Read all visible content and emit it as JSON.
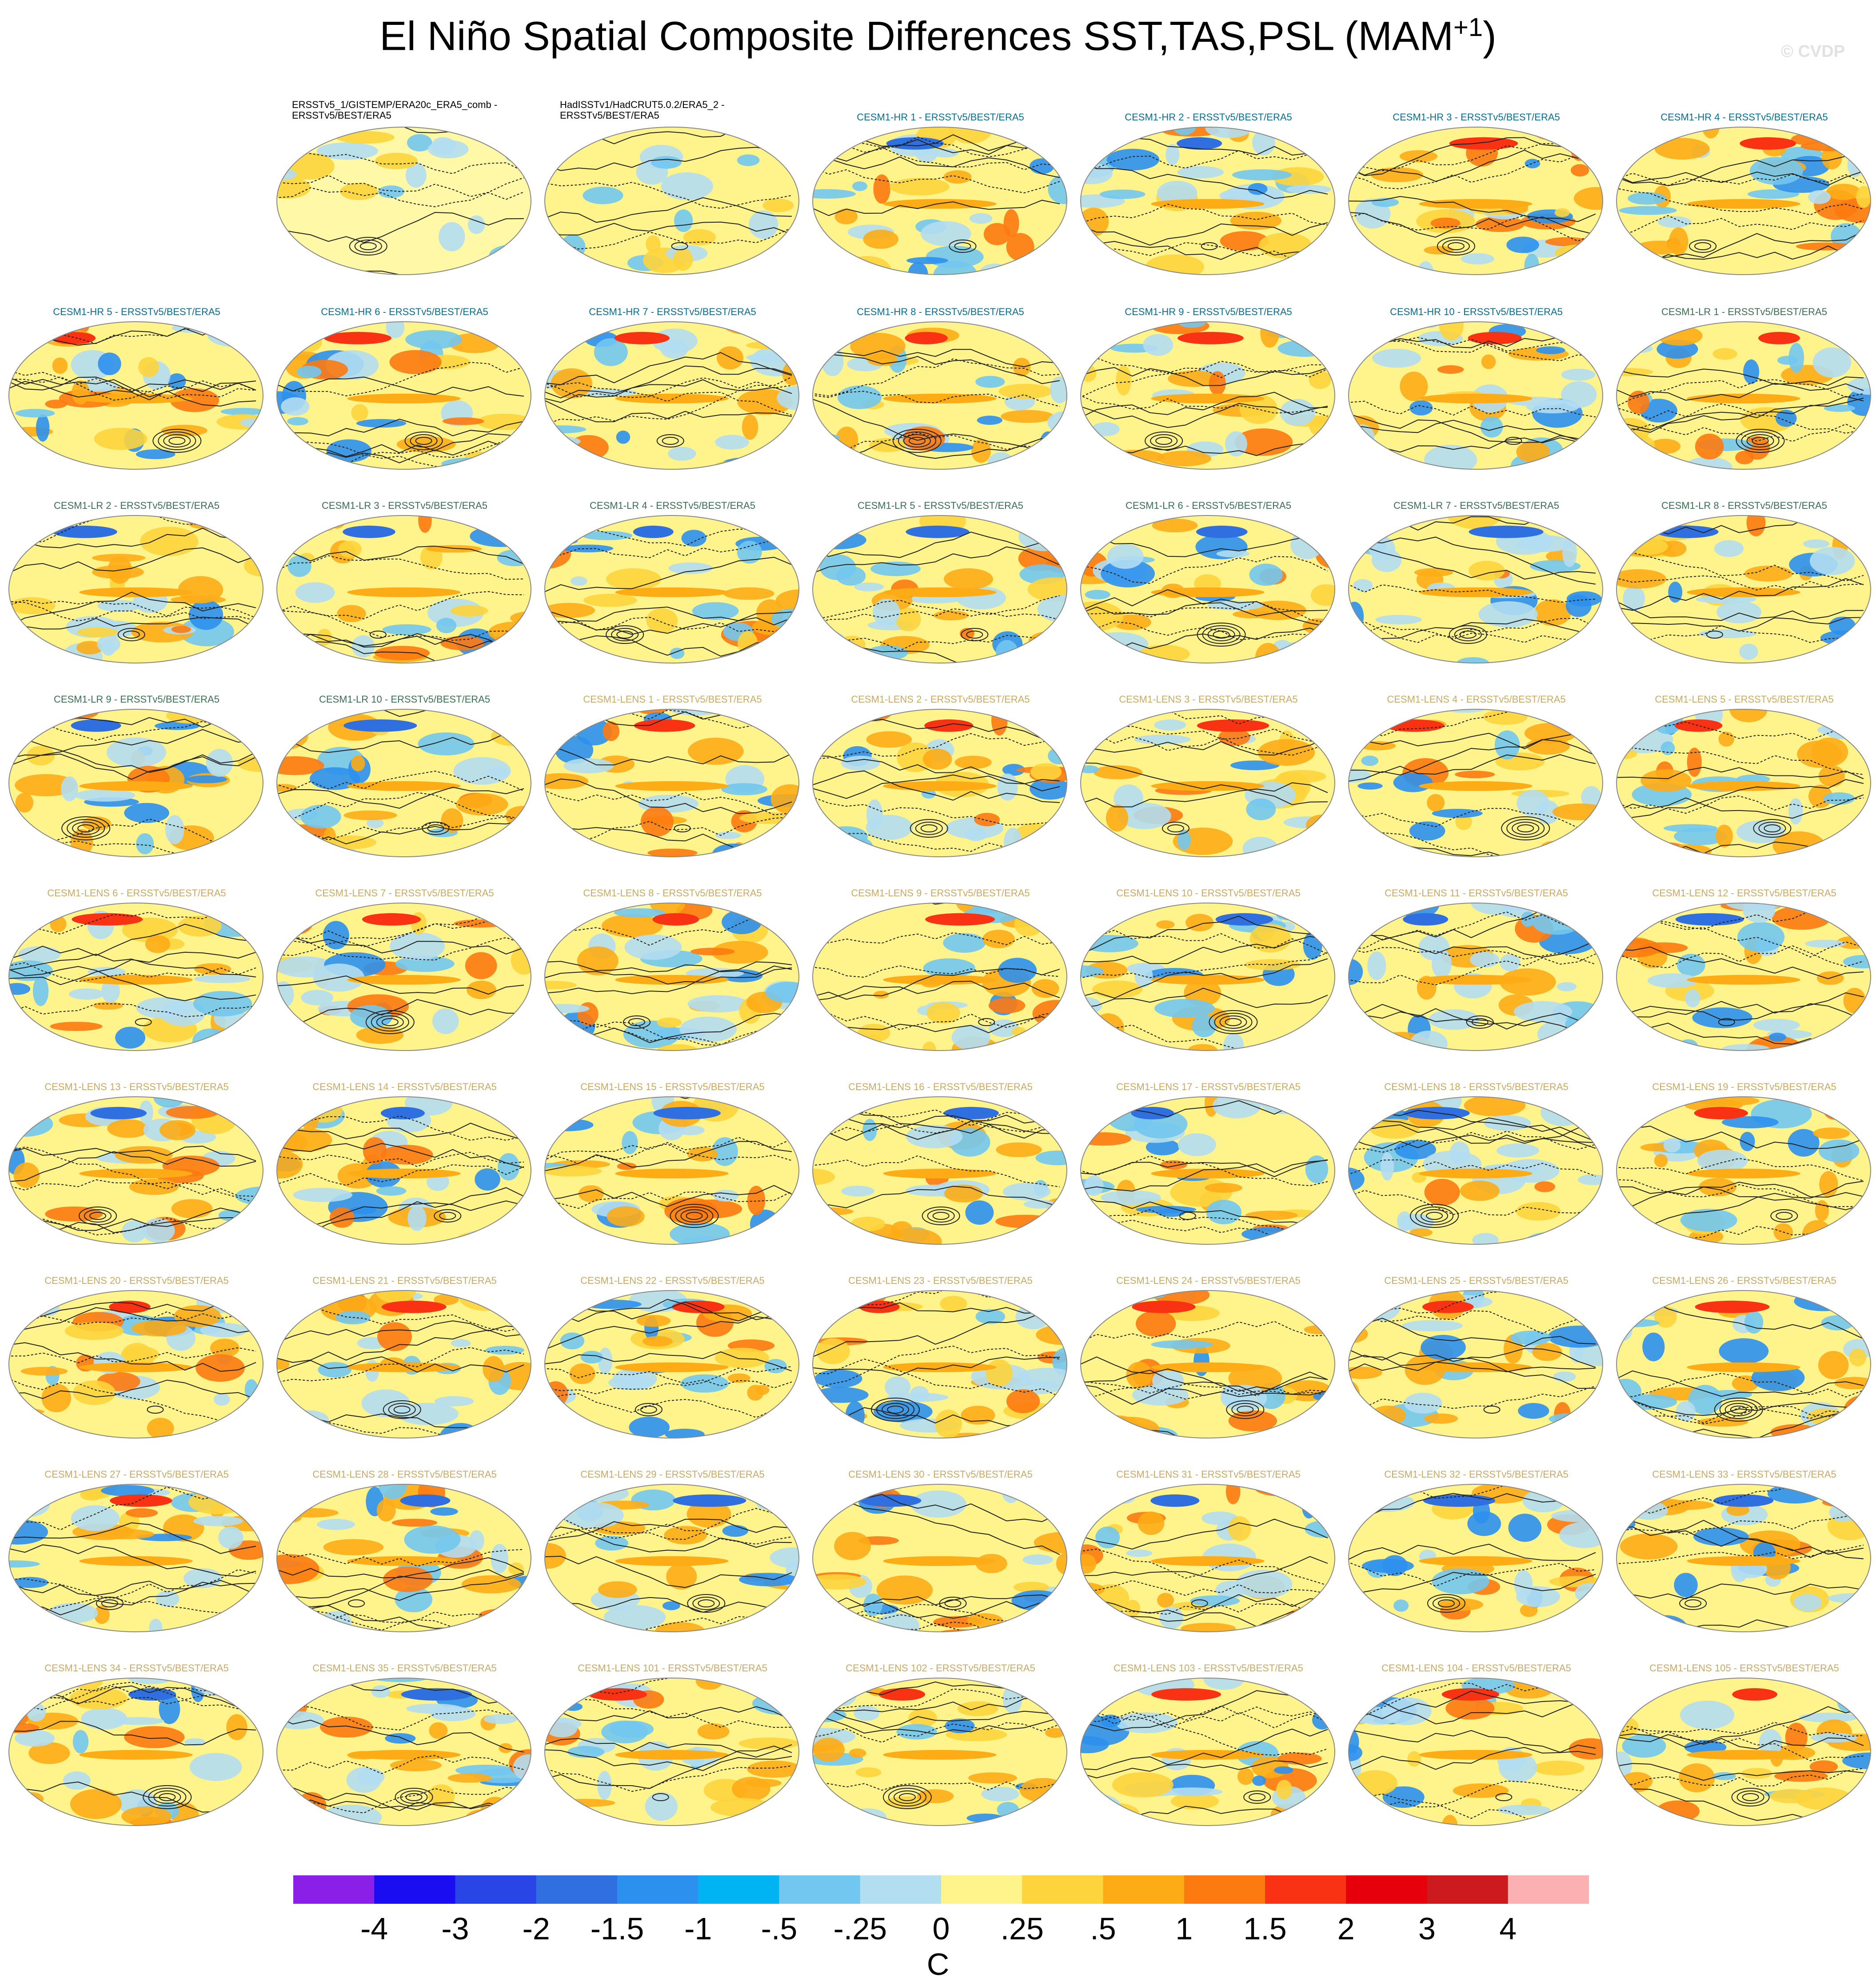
{
  "title": "El Niño Spatial Composite Differences SST,TAS,PSL (MAM",
  "title_sup": "+1",
  "title_close": ")",
  "copyright": "© CVDP",
  "colorbar": {
    "units": "C",
    "tick_labels": [
      "-4",
      "-3",
      "-2",
      "-1.5",
      "-1",
      "-.5",
      "-.25",
      "0",
      ".25",
      ".5",
      "1",
      "1.5",
      "2",
      "3",
      "4"
    ],
    "colors": [
      "#8a1fe8",
      "#1a0df2",
      "#2a45e6",
      "#2f6fe0",
      "#2c90ee",
      "#00b4f3",
      "#72c7f0",
      "#b3ddf1",
      "#fff38c",
      "#fdd43c",
      "#fdac16",
      "#fd7a10",
      "#f93214",
      "#e5000b",
      "#cc1a1f",
      "#fbb1b1"
    ]
  },
  "panels": [
    {
      "label": "ERSSTv5_1/GISTEMP/ERA20c_ERA5_comb - ERSSTv5/BEST/ERA5",
      "group": "obs"
    },
    {
      "label": "HadISSTv1/HadCRUT5.0.2/ERA5_2 - ERSSTv5/BEST/ERA5",
      "group": "obs"
    },
    {
      "label": "CESM1-HR 1 - ERSSTv5/BEST/ERA5",
      "group": "blue"
    },
    {
      "label": "CESM1-HR 2 - ERSSTv5/BEST/ERA5",
      "group": "blue"
    },
    {
      "label": "CESM1-HR 3 - ERSSTv5/BEST/ERA5",
      "group": "blue"
    },
    {
      "label": "CESM1-HR 4 - ERSSTv5/BEST/ERA5",
      "group": "blue"
    },
    {
      "label": "CESM1-HR 5 - ERSSTv5/BEST/ERA5",
      "group": "blue"
    },
    {
      "label": "CESM1-HR 6 - ERSSTv5/BEST/ERA5",
      "group": "blue"
    },
    {
      "label": "CESM1-HR 7 - ERSSTv5/BEST/ERA5",
      "group": "blue"
    },
    {
      "label": "CESM1-HR 8 - ERSSTv5/BEST/ERA5",
      "group": "blue"
    },
    {
      "label": "CESM1-HR 9 - ERSSTv5/BEST/ERA5",
      "group": "blue"
    },
    {
      "label": "CESM1-HR 10 - ERSSTv5/BEST/ERA5",
      "group": "blue"
    },
    {
      "label": "CESM1-LR 1 - ERSSTv5/BEST/ERA5",
      "group": "green"
    },
    {
      "label": "CESM1-LR 2 - ERSSTv5/BEST/ERA5",
      "group": "green"
    },
    {
      "label": "CESM1-LR 3 - ERSSTv5/BEST/ERA5",
      "group": "green"
    },
    {
      "label": "CESM1-LR 4 - ERSSTv5/BEST/ERA5",
      "group": "green"
    },
    {
      "label": "CESM1-LR 5 - ERSSTv5/BEST/ERA5",
      "group": "green"
    },
    {
      "label": "CESM1-LR 6 - ERSSTv5/BEST/ERA5",
      "group": "green"
    },
    {
      "label": "CESM1-LR 7 - ERSSTv5/BEST/ERA5",
      "group": "green"
    },
    {
      "label": "CESM1-LR 8 - ERSSTv5/BEST/ERA5",
      "group": "green"
    },
    {
      "label": "CESM1-LR 9 - ERSSTv5/BEST/ERA5",
      "group": "green"
    },
    {
      "label": "CESM1-LR 10 - ERSSTv5/BEST/ERA5",
      "group": "green"
    },
    {
      "label": "CESM1-LENS 1 - ERSSTv5/BEST/ERA5",
      "group": "tan"
    },
    {
      "label": "CESM1-LENS 2 - ERSSTv5/BEST/ERA5",
      "group": "tan"
    },
    {
      "label": "CESM1-LENS 3 - ERSSTv5/BEST/ERA5",
      "group": "tan"
    },
    {
      "label": "CESM1-LENS 4 - ERSSTv5/BEST/ERA5",
      "group": "tan"
    },
    {
      "label": "CESM1-LENS 5 - ERSSTv5/BEST/ERA5",
      "group": "tan"
    },
    {
      "label": "CESM1-LENS 6 - ERSSTv5/BEST/ERA5",
      "group": "tan"
    },
    {
      "label": "CESM1-LENS 7 - ERSSTv5/BEST/ERA5",
      "group": "tan"
    },
    {
      "label": "CESM1-LENS 8 - ERSSTv5/BEST/ERA5",
      "group": "tan"
    },
    {
      "label": "CESM1-LENS 9 - ERSSTv5/BEST/ERA5",
      "group": "tan"
    },
    {
      "label": "CESM1-LENS 10 - ERSSTv5/BEST/ERA5",
      "group": "tan"
    },
    {
      "label": "CESM1-LENS 11 - ERSSTv5/BEST/ERA5",
      "group": "tan"
    },
    {
      "label": "CESM1-LENS 12 - ERSSTv5/BEST/ERA5",
      "group": "tan"
    },
    {
      "label": "CESM1-LENS 13 - ERSSTv5/BEST/ERA5",
      "group": "tan"
    },
    {
      "label": "CESM1-LENS 14 - ERSSTv5/BEST/ERA5",
      "group": "tan"
    },
    {
      "label": "CESM1-LENS 15 - ERSSTv5/BEST/ERA5",
      "group": "tan"
    },
    {
      "label": "CESM1-LENS 16 - ERSSTv5/BEST/ERA5",
      "group": "tan"
    },
    {
      "label": "CESM1-LENS 17 - ERSSTv5/BEST/ERA5",
      "group": "tan"
    },
    {
      "label": "CESM1-LENS 18 - ERSSTv5/BEST/ERA5",
      "group": "tan"
    },
    {
      "label": "CESM1-LENS 19 - ERSSTv5/BEST/ERA5",
      "group": "tan"
    },
    {
      "label": "CESM1-LENS 20 - ERSSTv5/BEST/ERA5",
      "group": "tan"
    },
    {
      "label": "CESM1-LENS 21 - ERSSTv5/BEST/ERA5",
      "group": "tan"
    },
    {
      "label": "CESM1-LENS 22 - ERSSTv5/BEST/ERA5",
      "group": "tan"
    },
    {
      "label": "CESM1-LENS 23 - ERSSTv5/BEST/ERA5",
      "group": "tan"
    },
    {
      "label": "CESM1-LENS 24 - ERSSTv5/BEST/ERA5",
      "group": "tan"
    },
    {
      "label": "CESM1-LENS 25 - ERSSTv5/BEST/ERA5",
      "group": "tan"
    },
    {
      "label": "CESM1-LENS 26 - ERSSTv5/BEST/ERA5",
      "group": "tan"
    },
    {
      "label": "CESM1-LENS 27 - ERSSTv5/BEST/ERA5",
      "group": "tan"
    },
    {
      "label": "CESM1-LENS 28 - ERSSTv5/BEST/ERA5",
      "group": "tan"
    },
    {
      "label": "CESM1-LENS 29 - ERSSTv5/BEST/ERA5",
      "group": "tan"
    },
    {
      "label": "CESM1-LENS 30 - ERSSTv5/BEST/ERA5",
      "group": "tan"
    },
    {
      "label": "CESM1-LENS 31 - ERSSTv5/BEST/ERA5",
      "group": "tan"
    },
    {
      "label": "CESM1-LENS 32 - ERSSTv5/BEST/ERA5",
      "group": "tan"
    },
    {
      "label": "CESM1-LENS 33 - ERSSTv5/BEST/ERA5",
      "group": "tan"
    },
    {
      "label": "CESM1-LENS 34 - ERSSTv5/BEST/ERA5",
      "group": "tan"
    },
    {
      "label": "CESM1-LENS 35 - ERSSTv5/BEST/ERA5",
      "group": "tan"
    },
    {
      "label": "CESM1-LENS 101 - ERSSTv5/BEST/ERA5",
      "group": "tan"
    },
    {
      "label": "CESM1-LENS 102 - ERSSTv5/BEST/ERA5",
      "group": "tan"
    },
    {
      "label": "CESM1-LENS 103 - ERSSTv5/BEST/ERA5",
      "group": "tan"
    },
    {
      "label": "CESM1-LENS 104 - ERSSTv5/BEST/ERA5",
      "group": "tan"
    },
    {
      "label": "CESM1-LENS 105 - ERSSTv5/BEST/ERA5",
      "group": "tan"
    }
  ]
}
